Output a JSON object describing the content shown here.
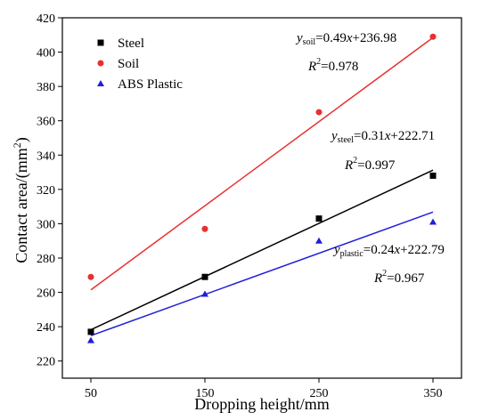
{
  "chart_data": {
    "type": "scatter",
    "xlabel": "Dropping height/mm",
    "ylabel": "Contact area/(mm",
    "ylabel_sup": "2",
    "ylabel_close": ")",
    "xlim": [
      25,
      375
    ],
    "ylim": [
      210,
      420
    ],
    "xticks": [
      50,
      150,
      250,
      350
    ],
    "yticks": [
      220,
      240,
      260,
      280,
      300,
      320,
      340,
      360,
      380,
      400,
      420
    ],
    "grid": false,
    "legend_position": "top-left",
    "series": [
      {
        "name": "Steel",
        "marker": "square",
        "color": "#000000",
        "x": [
          50,
          150,
          250,
          350
        ],
        "y": [
          237,
          269,
          303,
          328
        ],
        "fit": {
          "slope": 0.31,
          "intercept": 222.71
        }
      },
      {
        "name": "Soil",
        "marker": "circle",
        "color": "#e8302f",
        "x": [
          50,
          150,
          250,
          350
        ],
        "y": [
          269,
          297,
          365,
          409
        ],
        "fit": {
          "slope": 0.49,
          "intercept": 236.98
        }
      },
      {
        "name": "ABS Plastic",
        "marker": "triangle",
        "color": "#1f1fd8",
        "x": [
          50,
          150,
          250,
          350
        ],
        "y": [
          232,
          259,
          290,
          301
        ],
        "fit": {
          "slope": 0.24,
          "intercept": 222.79
        }
      }
    ],
    "annotations": [
      {
        "id": "soil",
        "eq_var": "y",
        "eq_sub": "soil",
        "eq_mid": "=0.49",
        "eq_x": "x",
        "eq_tail": "+236.98",
        "r2_r": "R",
        "r2_sup": "2",
        "r2_val": "=0.978"
      },
      {
        "id": "steel",
        "eq_var": "y",
        "eq_sub": "steel",
        "eq_mid": "=0.31",
        "eq_x": "x",
        "eq_tail": "+222.71",
        "r2_r": "R",
        "r2_sup": "2",
        "r2_val": "=0.997"
      },
      {
        "id": "plastic",
        "eq_var": "y",
        "eq_sub": "plastic",
        "eq_mid": "=0.24",
        "eq_x": "x",
        "eq_tail": "+222.79",
        "r2_r": "R",
        "r2_sup": "2",
        "r2_val": "=0.967"
      }
    ]
  }
}
